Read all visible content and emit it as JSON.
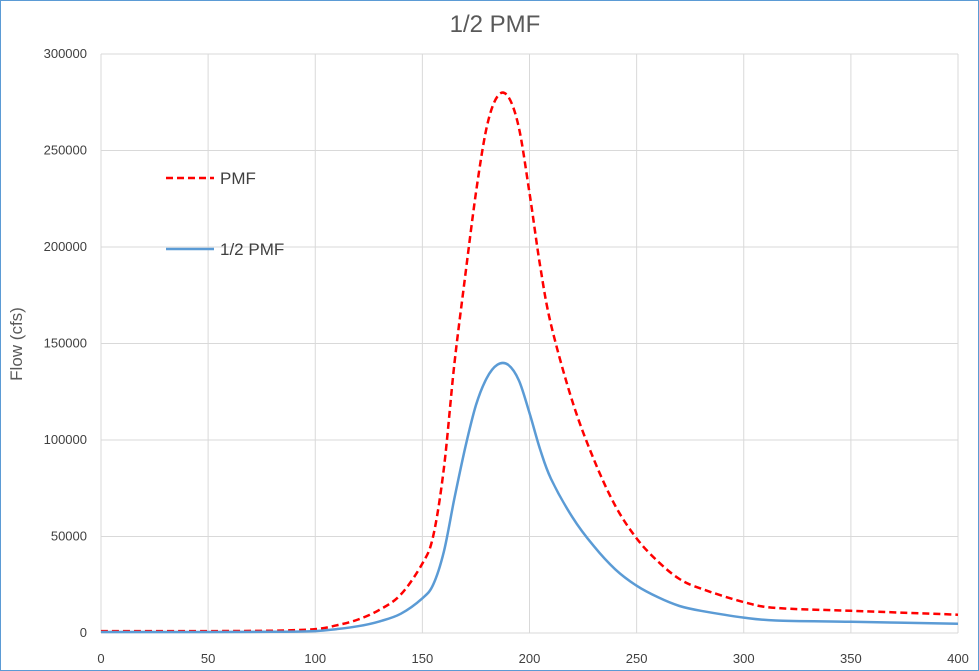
{
  "chart_data": {
    "type": "line",
    "title": "1/2 PMF",
    "xlabel": "",
    "ylabel": "Flow (cfs)",
    "xlim": [
      0,
      400
    ],
    "ylim": [
      0,
      300000
    ],
    "x_ticks": [
      "0",
      "50",
      "100",
      "150",
      "200",
      "250",
      "300",
      "350",
      "400"
    ],
    "y_ticks": [
      "0",
      "50000",
      "100000",
      "150000",
      "200000",
      "250000",
      "300000"
    ],
    "grid": true,
    "legend": "left",
    "series": [
      {
        "name": "PMF",
        "color": "#ff0000",
        "style": "dashed",
        "x": [
          0,
          50,
          80,
          100,
          110,
          120,
          130,
          140,
          150,
          155,
          160,
          165,
          170,
          175,
          180,
          185,
          190,
          195,
          200,
          205,
          210,
          220,
          230,
          240,
          250,
          260,
          270,
          280,
          300,
          315,
          350,
          400
        ],
        "values": [
          1000,
          1000,
          1200,
          2000,
          4000,
          7000,
          12000,
          20000,
          36000,
          50000,
          85000,
          140000,
          185000,
          228000,
          262000,
          278000,
          278000,
          262000,
          228000,
          190000,
          160000,
          120000,
          90000,
          66000,
          49000,
          37000,
          28000,
          23000,
          16000,
          13000,
          11500,
          9500
        ]
      },
      {
        "name": "1/2 PMF",
        "color": "#5b9bd5",
        "style": "solid",
        "x": [
          0,
          50,
          80,
          100,
          110,
          120,
          130,
          140,
          150,
          155,
          160,
          165,
          170,
          175,
          180,
          185,
          190,
          195,
          200,
          205,
          210,
          220,
          230,
          240,
          250,
          260,
          270,
          280,
          300,
          315,
          350,
          400
        ],
        "values": [
          500,
          500,
          600,
          1000,
          2000,
          3500,
          6000,
          10000,
          18000,
          25000,
          42000,
          70000,
          96000,
          118000,
          132000,
          139000,
          139000,
          131000,
          114000,
          95000,
          80000,
          60000,
          45000,
          33000,
          24500,
          18500,
          14000,
          11500,
          8000,
          6500,
          5800,
          4800
        ]
      }
    ]
  }
}
